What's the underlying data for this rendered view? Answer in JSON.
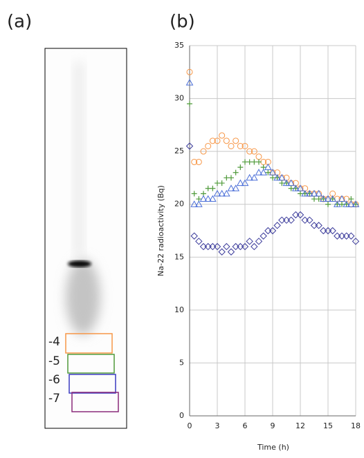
{
  "gel": {
    "label": "(a)",
    "fractions": [
      "-4",
      "-5",
      "-6",
      "-7"
    ]
  },
  "chart_data": {
    "type": "scatter",
    "label": "(b)",
    "xlabel": "Time (h)",
    "ylabel": "Na-22 radioactivity (Bq)",
    "xlim": [
      0,
      18
    ],
    "ylim": [
      0,
      35
    ],
    "xticks": [
      0,
      3,
      6,
      9,
      12,
      15,
      18
    ],
    "yticks": [
      0,
      5,
      10,
      15,
      20,
      25,
      30,
      35
    ],
    "grid": true,
    "x": [
      0,
      0.5,
      1,
      1.5,
      2,
      2.5,
      3,
      3.5,
      4,
      4.5,
      5,
      5.5,
      6,
      6.5,
      7,
      7.5,
      8,
      8.5,
      9,
      9.5,
      10,
      10.5,
      11,
      11.5,
      12,
      12.5,
      13,
      13.5,
      14,
      14.5,
      15,
      15.5,
      16,
      16.5,
      17,
      17.5,
      18
    ],
    "series": [
      {
        "color": "#f79646",
        "marker": "circle",
        "values": [
          32.5,
          24,
          24,
          25,
          25.5,
          26,
          26,
          26.5,
          26,
          25.5,
          26,
          25.5,
          25.5,
          25,
          25,
          24.5,
          24,
          24,
          23,
          23,
          22.5,
          22.5,
          22,
          22,
          21.5,
          21.5,
          21,
          21,
          21,
          20.5,
          20.5,
          21,
          20.5,
          20.5,
          20.5,
          20,
          20
        ]
      },
      {
        "color": "#4f9a3a",
        "marker": "plus",
        "values": [
          29.5,
          21,
          20.5,
          21,
          21.5,
          21.5,
          22,
          22,
          22.5,
          22.5,
          23,
          23.5,
          24,
          24,
          24,
          24,
          23.5,
          23,
          22.5,
          22.5,
          22,
          22,
          21.5,
          21.5,
          21,
          21,
          21,
          20.5,
          20.5,
          20.5,
          20,
          20.5,
          20,
          20,
          20,
          20.5,
          20
        ]
      },
      {
        "color": "#4b6fd8",
        "marker": "triangle",
        "values": [
          31.5,
          20,
          20,
          20.5,
          20.5,
          20.5,
          21,
          21,
          21,
          21.5,
          21.5,
          22,
          22,
          22.5,
          22.5,
          23,
          23,
          23.5,
          23,
          22.5,
          22.5,
          22,
          22,
          21.5,
          21.5,
          21,
          21,
          21,
          21,
          20.5,
          20.5,
          20.5,
          20,
          20.5,
          20,
          20,
          20
        ]
      },
      {
        "color": "#3a3a9a",
        "marker": "diamond",
        "values": [
          25.5,
          17,
          16.5,
          16,
          16,
          16,
          16,
          15.5,
          16,
          15.5,
          16,
          16,
          16,
          16.5,
          16,
          16.5,
          17,
          17.5,
          17.5,
          18,
          18.5,
          18.5,
          18.5,
          19,
          19,
          18.5,
          18.5,
          18,
          18,
          17.5,
          17.5,
          17.5,
          17,
          17,
          17,
          17,
          16.5
        ]
      }
    ]
  }
}
